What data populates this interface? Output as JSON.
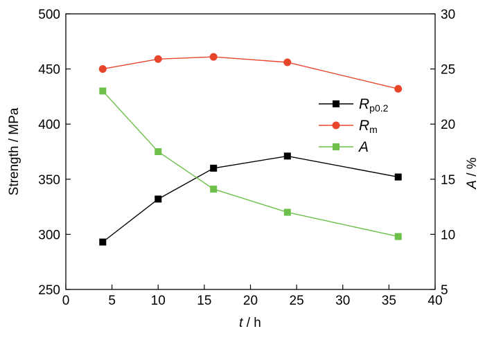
{
  "chart_data": {
    "type": "line",
    "title": "",
    "x_axis": {
      "label_italic": "t",
      "label_rest": " / h",
      "range": [
        0,
        40
      ],
      "ticks": [
        "0",
        "5",
        "10",
        "15",
        "20",
        "25",
        "30",
        "35",
        "40"
      ]
    },
    "y_axis_left": {
      "label": "Strength / MPa",
      "range": [
        250,
        500
      ],
      "ticks": [
        "250",
        "300",
        "350",
        "400",
        "450",
        "500"
      ]
    },
    "y_axis_right": {
      "label_italic": "A",
      "label_rest": " / %",
      "range": [
        5,
        30
      ],
      "ticks": [
        "5",
        "10",
        "15",
        "20",
        "25",
        "30"
      ]
    },
    "grid": false,
    "legend_position": "center-right",
    "x": [
      4,
      10,
      16,
      24,
      36
    ],
    "series": [
      {
        "name_main": "R",
        "name_sub": "p0.2",
        "axis": "left",
        "marker": "square",
        "color": "#000000",
        "values": [
          293,
          332,
          360,
          371,
          352
        ]
      },
      {
        "name_main": "R",
        "name_sub": "m",
        "axis": "left",
        "marker": "circle",
        "color": "#e8452b",
        "values": [
          450,
          459,
          461,
          456,
          432
        ]
      },
      {
        "name_main": "A",
        "name_sub": "",
        "axis": "right",
        "marker": "square",
        "color": "#6cc04a",
        "values": [
          23.0,
          17.5,
          14.1,
          12.0,
          9.8
        ]
      }
    ]
  }
}
